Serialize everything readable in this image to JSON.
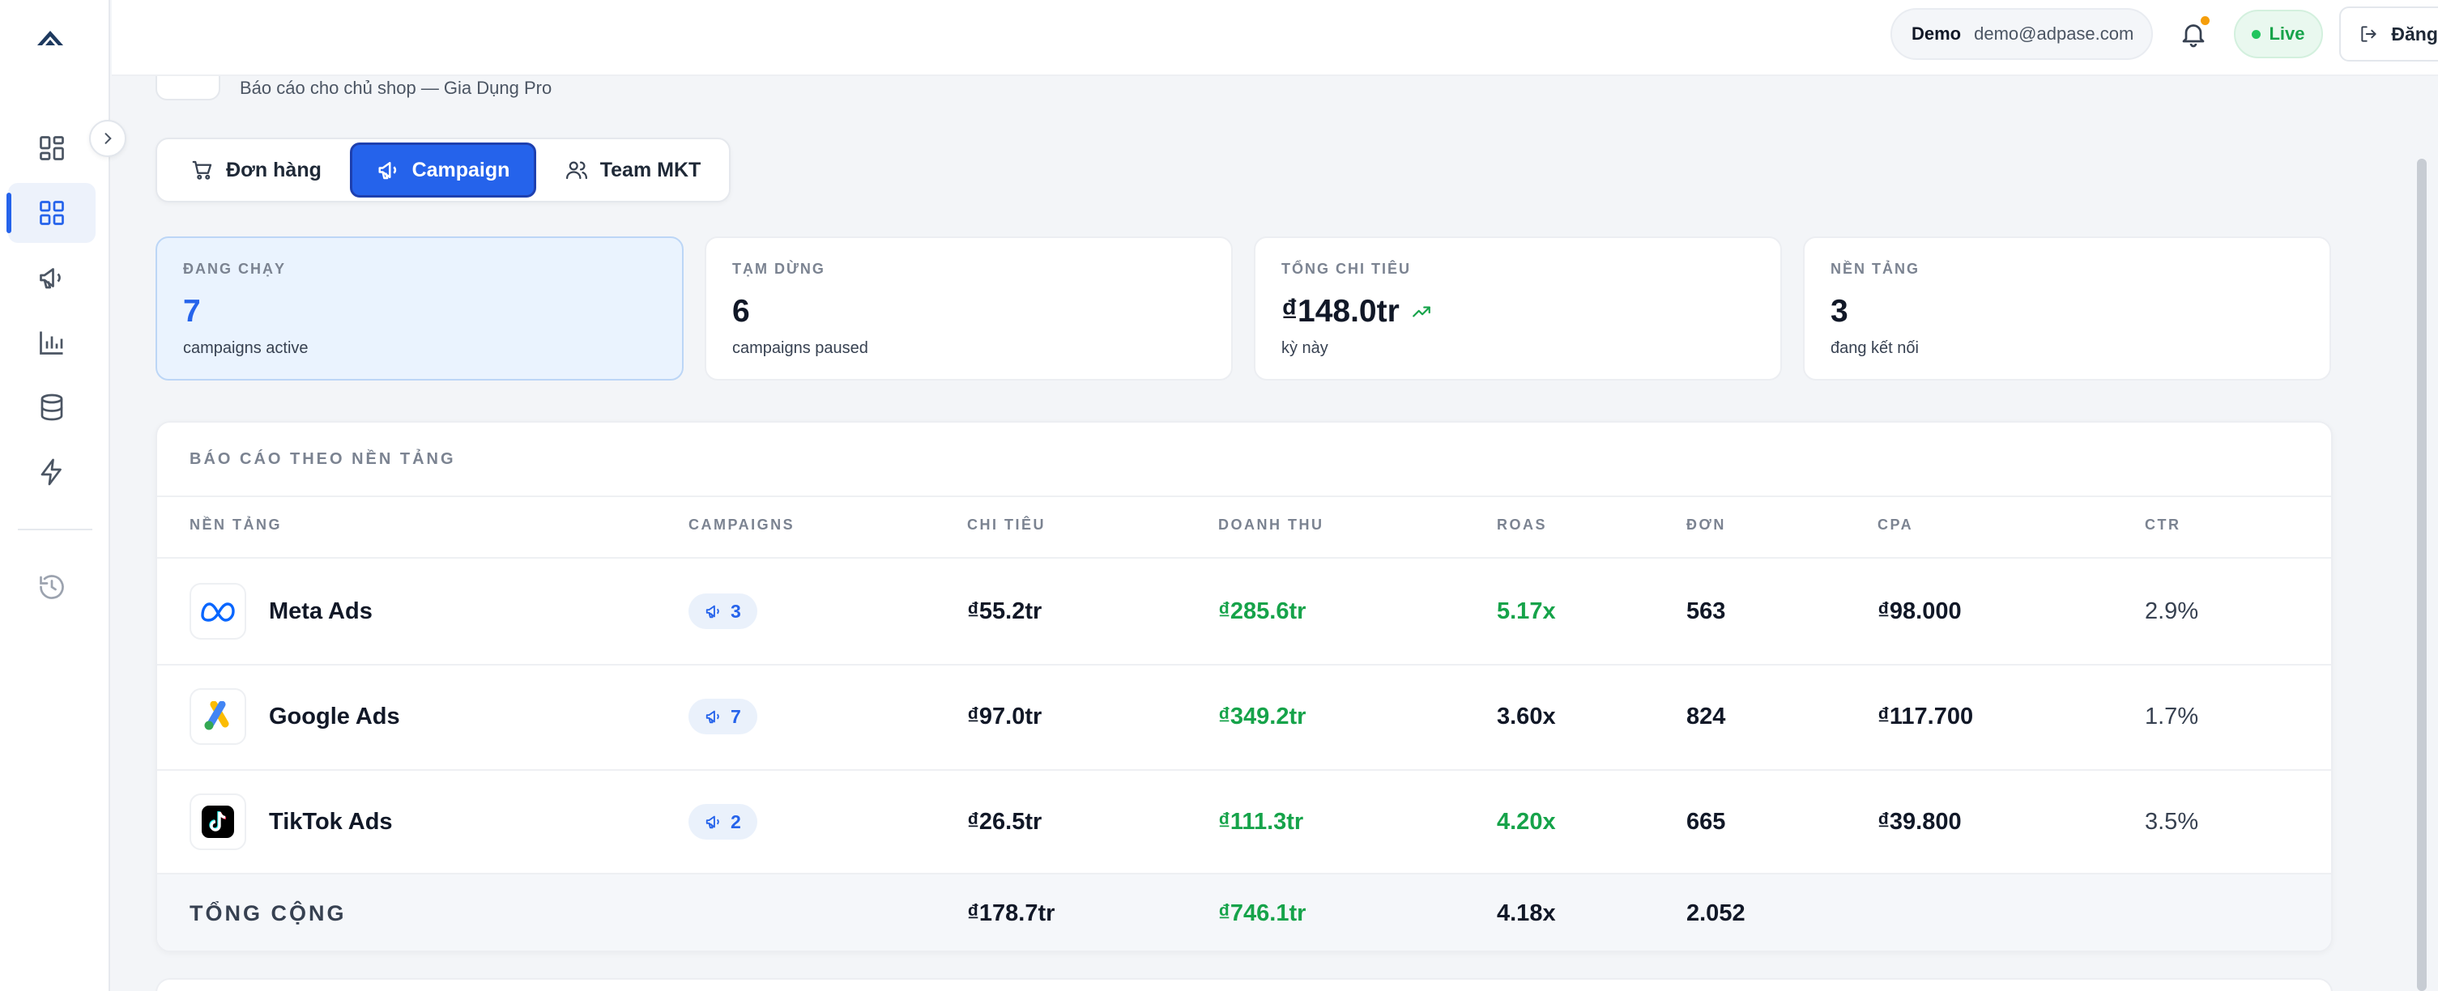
{
  "header": {
    "user_name": "Demo",
    "user_email": "demo@adpase.com",
    "live_label": "Live",
    "logout_label": "Đăng xuất"
  },
  "page": {
    "subtitle": "Báo cáo cho chủ shop — Gia Dụng Pro"
  },
  "tabs": [
    {
      "label": "Đơn hàng",
      "icon": "cart-icon",
      "active": false
    },
    {
      "label": "Campaign",
      "icon": "megaphone-icon",
      "active": true
    },
    {
      "label": "Team MKT",
      "icon": "users-icon",
      "active": false
    }
  ],
  "sidebar": {
    "items": [
      {
        "icon": "grid-icon",
        "active": false
      },
      {
        "icon": "grid-icon",
        "active": true
      },
      {
        "icon": "megaphone-icon",
        "active": false
      },
      {
        "icon": "bar-chart-icon",
        "active": false
      },
      {
        "icon": "database-icon",
        "active": false
      },
      {
        "icon": "lightning-icon",
        "active": false
      },
      {
        "icon": "history-icon",
        "active": false
      }
    ]
  },
  "stats": [
    {
      "label": "ĐANG CHẠY",
      "value": "7",
      "sub": "campaigns active"
    },
    {
      "label": "TẠM DỪNG",
      "value": "6",
      "sub": "campaigns paused"
    },
    {
      "label": "TỔNG CHI TIÊU",
      "value": "₫148.0tr",
      "sub": "kỳ này"
    },
    {
      "label": "NỀN TẢNG",
      "value": "3",
      "sub": "đang kết nối"
    }
  ],
  "report": {
    "title": "BÁO CÁO THEO NỀN TẢNG",
    "columns": [
      "NỀN TẢNG",
      "CAMPAIGNS",
      "CHI TIÊU",
      "DOANH THU",
      "ROAS",
      "ĐƠN",
      "CPA",
      "CTR"
    ],
    "rows": [
      {
        "platform": "Meta Ads",
        "icon": "meta-icon",
        "campaigns": "3",
        "spend": "₫55.2tr",
        "revenue": "₫285.6tr",
        "roas": "5.17x",
        "roas_good": true,
        "orders": "563",
        "cpa": "₫98.000",
        "ctr": "2.9%"
      },
      {
        "platform": "Google Ads",
        "icon": "google-ads-icon",
        "campaigns": "7",
        "spend": "₫97.0tr",
        "revenue": "₫349.2tr",
        "roas": "3.60x",
        "roas_good": false,
        "orders": "824",
        "cpa": "₫117.700",
        "ctr": "1.7%"
      },
      {
        "platform": "TikTok Ads",
        "icon": "tiktok-icon",
        "campaigns": "2",
        "spend": "₫26.5tr",
        "revenue": "₫111.3tr",
        "roas": "4.20x",
        "roas_good": true,
        "orders": "665",
        "cpa": "₫39.800",
        "ctr": "3.5%"
      }
    ],
    "total": {
      "label": "TỔNG CỘNG",
      "spend": "₫178.7tr",
      "revenue": "₫746.1tr",
      "roas": "4.18x",
      "orders": "2.052"
    }
  },
  "colors": {
    "accent": "#2563eb",
    "positive": "#16a34a",
    "notification": "#f59e0b"
  }
}
